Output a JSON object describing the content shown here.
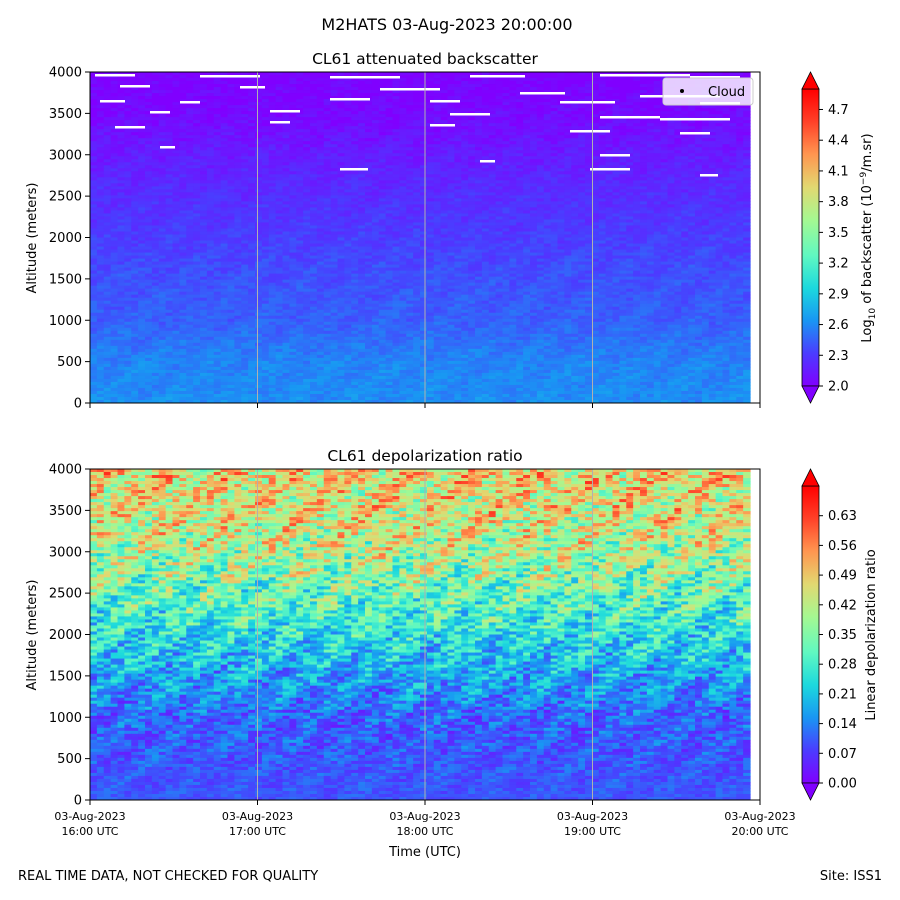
{
  "suptitle": "M2HATS 03-Aug-2023 20:00:00",
  "footer": {
    "left": "REAL TIME DATA, NOT CHECKED FOR QUALITY",
    "right": "Site: ISS1"
  },
  "colors": {
    "rainbow": [
      "#8000ff",
      "#4b3cff",
      "#1996f3",
      "#1cd9dd",
      "#60f8c1",
      "#a5f891",
      "#e2d870",
      "#ff9650",
      "#ff4128",
      "#ff0000"
    ],
    "vline": "#b0b0b0",
    "cloud": "#ffffff"
  },
  "chart_data": [
    {
      "type": "heatmap",
      "title": "CL61 attenuated backscatter",
      "ylabel": "Altitude (meters)",
      "ylim": [
        0,
        4000
      ],
      "yticks": [
        "0",
        "500",
        "1000",
        "1500",
        "2000",
        "2500",
        "3000",
        "3500",
        "4000"
      ],
      "colorbar": {
        "label_main": "Log",
        "label_sub": "10",
        "label_mid": " of backscatter (10",
        "label_sup": "−9",
        "label_end": "/m.sr)",
        "range": [
          2.0,
          4.9
        ],
        "ticks": [
          "2.0",
          "2.3",
          "2.6",
          "2.9",
          "3.2",
          "3.5",
          "3.8",
          "4.1",
          "4.4",
          "4.7"
        ]
      },
      "legend": {
        "entries": [
          "Cloud"
        ],
        "position": "upper right"
      },
      "profile": [
        {
          "altitude": 0,
          "value": 2.62
        },
        {
          "altitude": 500,
          "value": 2.58
        },
        {
          "altitude": 1000,
          "value": 2.45
        },
        {
          "altitude": 1500,
          "value": 2.4
        },
        {
          "altitude": 2000,
          "value": 2.32
        },
        {
          "altitude": 2500,
          "value": 2.25
        },
        {
          "altitude": 3000,
          "value": 2.15
        },
        {
          "altitude": 3500,
          "value": 2.05
        },
        {
          "altitude": 4000,
          "value": 2.0
        }
      ]
    },
    {
      "type": "heatmap",
      "title": "CL61 depolarization ratio",
      "ylabel": "Altitude (meters)",
      "ylim": [
        0,
        4000
      ],
      "yticks": [
        "0",
        "500",
        "1000",
        "1500",
        "2000",
        "2500",
        "3000",
        "3500",
        "4000"
      ],
      "xlabel": "Time (UTC)",
      "xticks": [
        {
          "date": "03-Aug-2023",
          "time": "16:00 UTC"
        },
        {
          "date": "03-Aug-2023",
          "time": "17:00 UTC"
        },
        {
          "date": "03-Aug-2023",
          "time": "18:00 UTC"
        },
        {
          "date": "03-Aug-2023",
          "time": "19:00 UTC"
        },
        {
          "date": "03-Aug-2023",
          "time": "20:00 UTC"
        }
      ],
      "colorbar": {
        "label": "Linear depolarization ratio",
        "range": [
          0.0,
          0.7
        ],
        "ticks": [
          "0.00",
          "0.07",
          "0.14",
          "0.21",
          "0.28",
          "0.35",
          "0.42",
          "0.49",
          "0.56",
          "0.63"
        ]
      },
      "profile": [
        {
          "altitude": 0,
          "value": 0.1
        },
        {
          "altitude": 500,
          "value": 0.1
        },
        {
          "altitude": 1000,
          "value": 0.11
        },
        {
          "altitude": 1500,
          "value": 0.18
        },
        {
          "altitude": 2000,
          "value": 0.25
        },
        {
          "altitude": 2500,
          "value": 0.33
        },
        {
          "altitude": 3000,
          "value": 0.4
        },
        {
          "altitude": 3500,
          "value": 0.45
        },
        {
          "altitude": 4000,
          "value": 0.48
        }
      ]
    }
  ]
}
